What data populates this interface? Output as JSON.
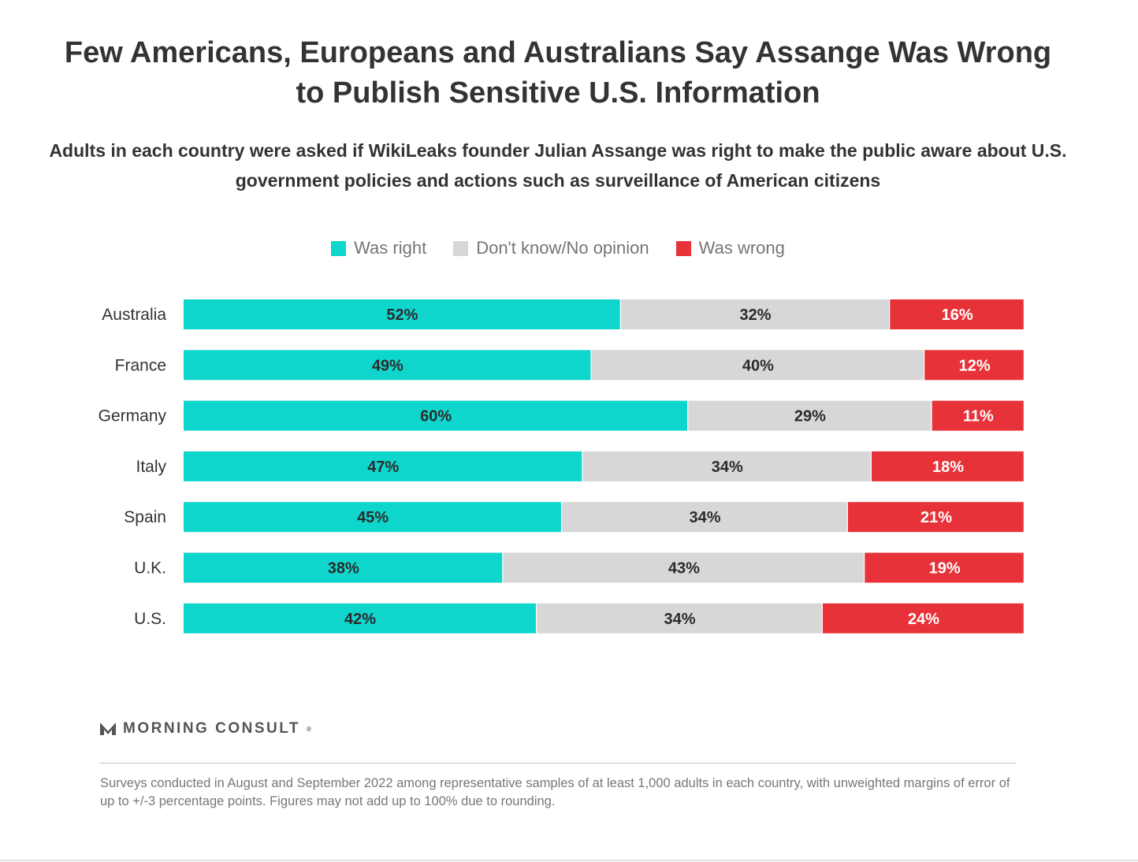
{
  "title": "Few Americans, Europeans and Australians Say Assange Was Wrong to Publish Sensitive U.S. Information",
  "subtitle": "Adults in each country were asked if WikiLeaks founder Julian Assange was right to make the public aware about U.S. government policies and actions such as surveillance of American citizens",
  "colors": {
    "right": "#0fd6cd",
    "dontknow": "#d7d7d7",
    "wrong": "#e8323a"
  },
  "chart_data": {
    "type": "bar",
    "orientation": "horizontal",
    "stacked": true,
    "categories": [
      "Australia",
      "France",
      "Germany",
      "Italy",
      "Spain",
      "U.K.",
      "U.S."
    ],
    "series": [
      {
        "name": "Was right",
        "key": "right",
        "values": [
          52,
          49,
          60,
          47,
          45,
          38,
          42
        ],
        "labels": [
          "52%",
          "49%",
          "60%",
          "47%",
          "45%",
          "38%",
          "42%"
        ]
      },
      {
        "name": "Don't know/No opinion",
        "key": "dontknow",
        "values": [
          32,
          40,
          29,
          34,
          34,
          43,
          34
        ],
        "labels": [
          "32%",
          "40%",
          "29%",
          "34%",
          "34%",
          "43%",
          "34%"
        ]
      },
      {
        "name": "Was wrong",
        "key": "wrong",
        "values": [
          16,
          12,
          11,
          18,
          21,
          19,
          24
        ],
        "labels": [
          "16%",
          "12%",
          "11%",
          "18%",
          "21%",
          "19%",
          "24%"
        ]
      }
    ],
    "xlim": [
      0,
      100
    ],
    "legend_position": "top-center"
  },
  "brand": {
    "name": "MORNING CONSULT",
    "mark": "®"
  },
  "footnote": "Surveys conducted in August and September 2022 among representative samples of at least 1,000 adults in each country, with unweighted margins of error of up to +/-3 percentage points. Figures may not add up to 100% due to rounding."
}
